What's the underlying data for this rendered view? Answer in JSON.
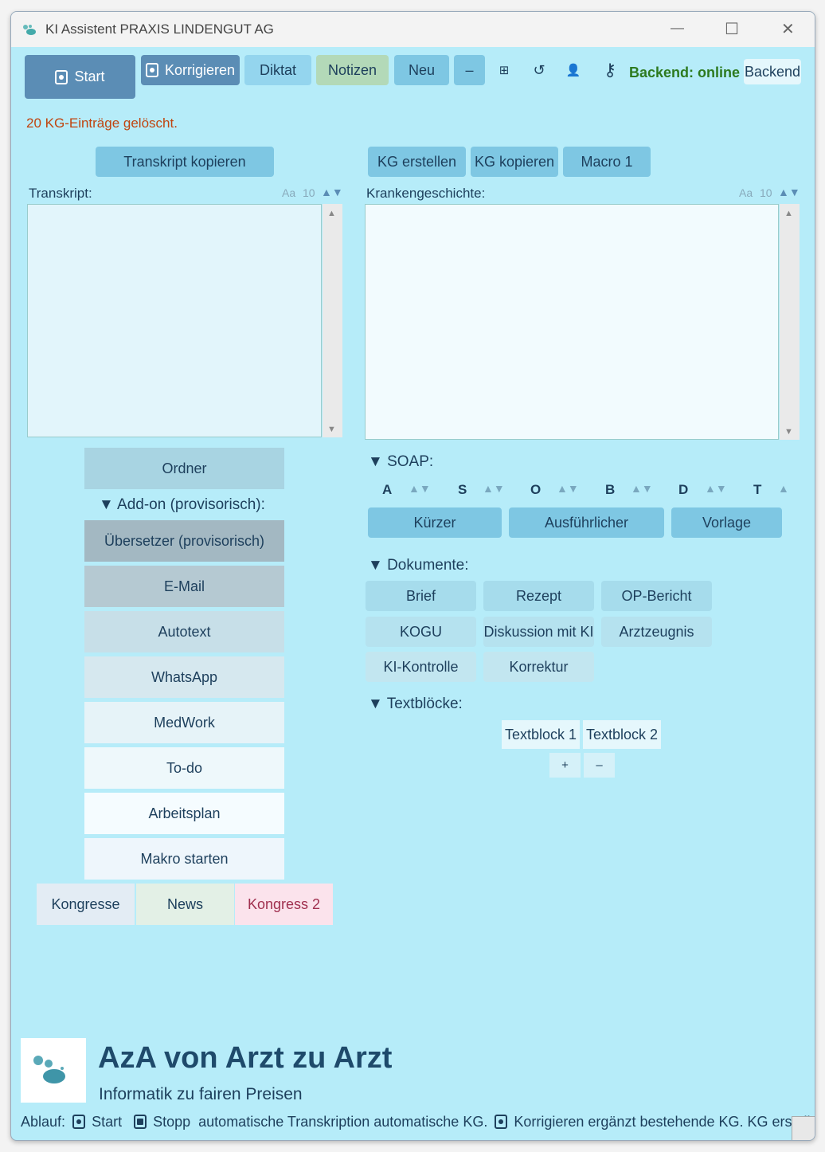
{
  "window": {
    "title": "KI Assistent PRAXIS LINDENGUT AG",
    "minimize": "—",
    "maximize": "☐",
    "close": "✕"
  },
  "toolbar": {
    "start": "Start",
    "korrigieren": "Korrigieren",
    "diktat": "Diktat",
    "notizen": "Notizen",
    "neu": "Neu",
    "minus": "–",
    "grid": "⊞",
    "refresh": "↺",
    "user": "👤",
    "key": "⚷",
    "backend_status": "Backend: online",
    "backend": "Backend"
  },
  "status": "20 KG-Einträge gelöscht.",
  "transcript": {
    "copy": "Transkript kopieren",
    "label": "Transkript:",
    "font": "Aa",
    "size": "10",
    "arrows": "▲▼"
  },
  "kg": {
    "create": "KG erstellen",
    "copy": "KG kopieren",
    "macro": "Macro 1",
    "label": "Krankengeschichte:",
    "font": "Aa",
    "size": "10",
    "arrows": "▲▼"
  },
  "left": {
    "ordner": "Ordner",
    "addon": "▼ Add-on (provisorisch):",
    "items": [
      "Übersetzer (provisorisch)",
      "E-Mail",
      "Autotext",
      "WhatsApp",
      "MedWork",
      "To-do",
      "Arbeitsplan",
      "Makro starten"
    ],
    "bottom": [
      "Kongresse",
      "News",
      "Kongress 2"
    ]
  },
  "soap": {
    "header": "▼ SOAP:",
    "letters": [
      "A",
      "S",
      "O",
      "B",
      "D",
      "T"
    ],
    "arrows": "▲▼",
    "buttons": [
      "Kürzer",
      "Ausführlicher",
      "Vorlage"
    ]
  },
  "documents": {
    "header": "▼ Dokumente:",
    "items": [
      "Brief",
      "Rezept",
      "OP-Bericht",
      "KOGU",
      "Diskussion mit KI",
      "Arztzeugnis",
      "KI-Kontrolle",
      "Korrektur"
    ]
  },
  "textblocks": {
    "header": "▼ Textblöcke:",
    "items": [
      "Textblock 1",
      "Textblock 2"
    ],
    "plus": "+",
    "minus": "–"
  },
  "footer": {
    "brand": "AzA von Arzt zu Arzt",
    "tagline": "Informatik zu fairen Preisen",
    "ablauf": "Ablauf:",
    "start": "Start",
    "stopp": "Stopp",
    "rest1": "automatische Transkription  automatische KG.",
    "rest2": "Korrigieren ergänzt bestehende KG. KG erstellen"
  }
}
